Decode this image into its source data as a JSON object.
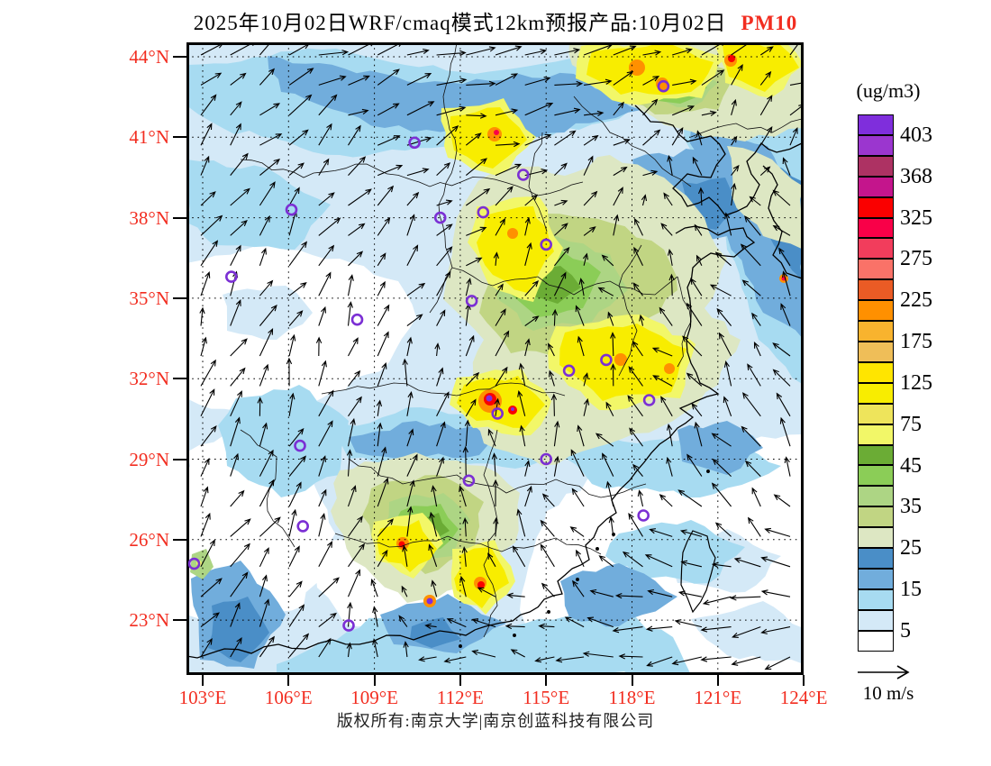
{
  "title": {
    "text": "2025年10月02日WRF/cmaq模式12km预报产品:10月02日",
    "pollutant": "PM10"
  },
  "axes": {
    "lat": [
      "44°N",
      "41°N",
      "38°N",
      "35°N",
      "32°N",
      "29°N",
      "26°N",
      "23°N"
    ],
    "lon": [
      "103°E",
      "106°E",
      "109°E",
      "112°E",
      "115°E",
      "118°E",
      "121°E",
      "124°E"
    ]
  },
  "legend": {
    "units": "(ug/m3)",
    "tick_values": [
      "403",
      "368",
      "325",
      "275",
      "225",
      "175",
      "125",
      "75",
      "45",
      "35",
      "25",
      "15",
      "5"
    ],
    "cell_colors": [
      "#7F2EDC",
      "#9B36CF",
      "#AD3263",
      "#C4158C",
      "#FA0000",
      "#F90048",
      "#F23D5C",
      "#FA7268",
      "#EA5B25",
      "#FF9000",
      "#F8B32E",
      "#EFBE58",
      "#FFE500",
      "#F8ED00",
      "#EEE45B",
      "#F2F768",
      "#6BAC35",
      "#8BCD57",
      "#ADD584",
      "#C1D583",
      "#DDE7C3",
      "#4A8EC7",
      "#71ADDC",
      "#A7DBF1",
      "#D4E9F7",
      "#FFFFFF"
    ]
  },
  "wind_ref": {
    "label": "10 m/s"
  },
  "footer": {
    "copyright": "版权所有:南京大学|南京创蓝科技有限公司"
  },
  "map": {
    "lon_ticks": [
      103,
      106,
      109,
      112,
      115,
      118,
      121,
      124
    ],
    "lat_ticks": [
      44,
      41,
      38,
      35,
      32,
      29,
      26,
      23
    ],
    "palette": {
      "paleBlue": "#D4E9F7",
      "midBlue": "#A7DBF1",
      "blue": "#71ADDC",
      "deepBlue": "#4A8EC7",
      "paleGreen": "#DDE7C3",
      "olive": "#C1D583",
      "yGreen": "#ADD584",
      "lGreen": "#8BCD57",
      "green": "#6BAC35",
      "paleYellow": "#F2F768",
      "yellow": "#F8ED00",
      "orange": "#FF9000",
      "redOrange": "#EA5B25",
      "red": "#FA0000",
      "crimson": "#F90048",
      "purple": "#7F2EDC",
      "markerPurple": "#7B2FD4"
    },
    "stations_lonlat": [
      [
        119.1,
        42.9
      ],
      [
        110.4,
        40.8
      ],
      [
        114.2,
        39.6
      ],
      [
        112.8,
        38.2
      ],
      [
        111.3,
        38.0
      ],
      [
        106.1,
        38.3
      ],
      [
        115.0,
        37.0
      ],
      [
        104.0,
        35.8
      ],
      [
        112.4,
        34.9
      ],
      [
        108.4,
        34.2
      ],
      [
        115.8,
        32.3
      ],
      [
        117.1,
        32.7
      ],
      [
        118.6,
        31.2
      ],
      [
        113.3,
        30.7
      ],
      [
        115.0,
        29.0
      ],
      [
        112.3,
        28.2
      ],
      [
        106.4,
        29.5
      ],
      [
        106.5,
        26.5
      ],
      [
        102.7,
        25.1
      ],
      [
        108.1,
        22.8
      ],
      [
        118.4,
        26.9
      ]
    ]
  }
}
